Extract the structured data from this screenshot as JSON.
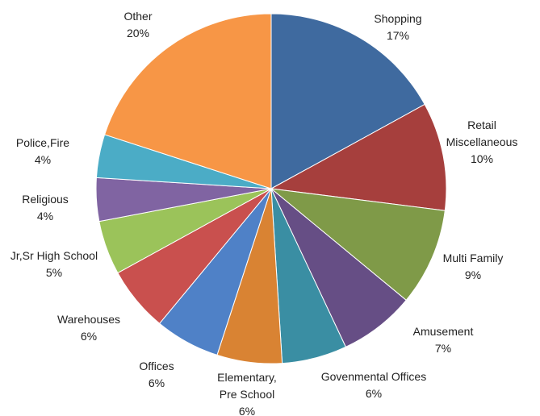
{
  "chart_data": {
    "type": "pie",
    "title": "",
    "start": "12 o'clock, clockwise",
    "slices": [
      {
        "label": "Shopping",
        "value": 17,
        "pct_label": "17%",
        "color": "#3F6A9F"
      },
      {
        "label": "Retail Miscellaneous",
        "value": 10,
        "pct_label": "10%",
        "color": "#A63F3D"
      },
      {
        "label": "Multi Family",
        "value": 9,
        "pct_label": "9%",
        "color": "#7F9A48"
      },
      {
        "label": "Amusement",
        "value": 7,
        "pct_label": "7%",
        "color": "#664E85"
      },
      {
        "label": "Govenmental Offices",
        "value": 6,
        "pct_label": "6%",
        "color": "#3A8EA3"
      },
      {
        "label": "Elementary, Pre School",
        "value": 6,
        "pct_label": "6%",
        "color": "#D98333"
      },
      {
        "label": "Offices",
        "value": 6,
        "pct_label": "6%",
        "color": "#4F81C7"
      },
      {
        "label": "Warehouses",
        "value": 6,
        "pct_label": "6%",
        "color": "#C9504E"
      },
      {
        "label": "Jr,Sr High School",
        "value": 5,
        "pct_label": "5%",
        "color": "#9BC35A"
      },
      {
        "label": "Religious",
        "value": 4,
        "pct_label": "4%",
        "color": "#8064A2"
      },
      {
        "label": "Police,Fire",
        "value": 4,
        "pct_label": "4%",
        "color": "#4BACC6"
      },
      {
        "label": "Other",
        "value": 20,
        "pct_label": "20%",
        "color": "#F79646"
      }
    ]
  }
}
